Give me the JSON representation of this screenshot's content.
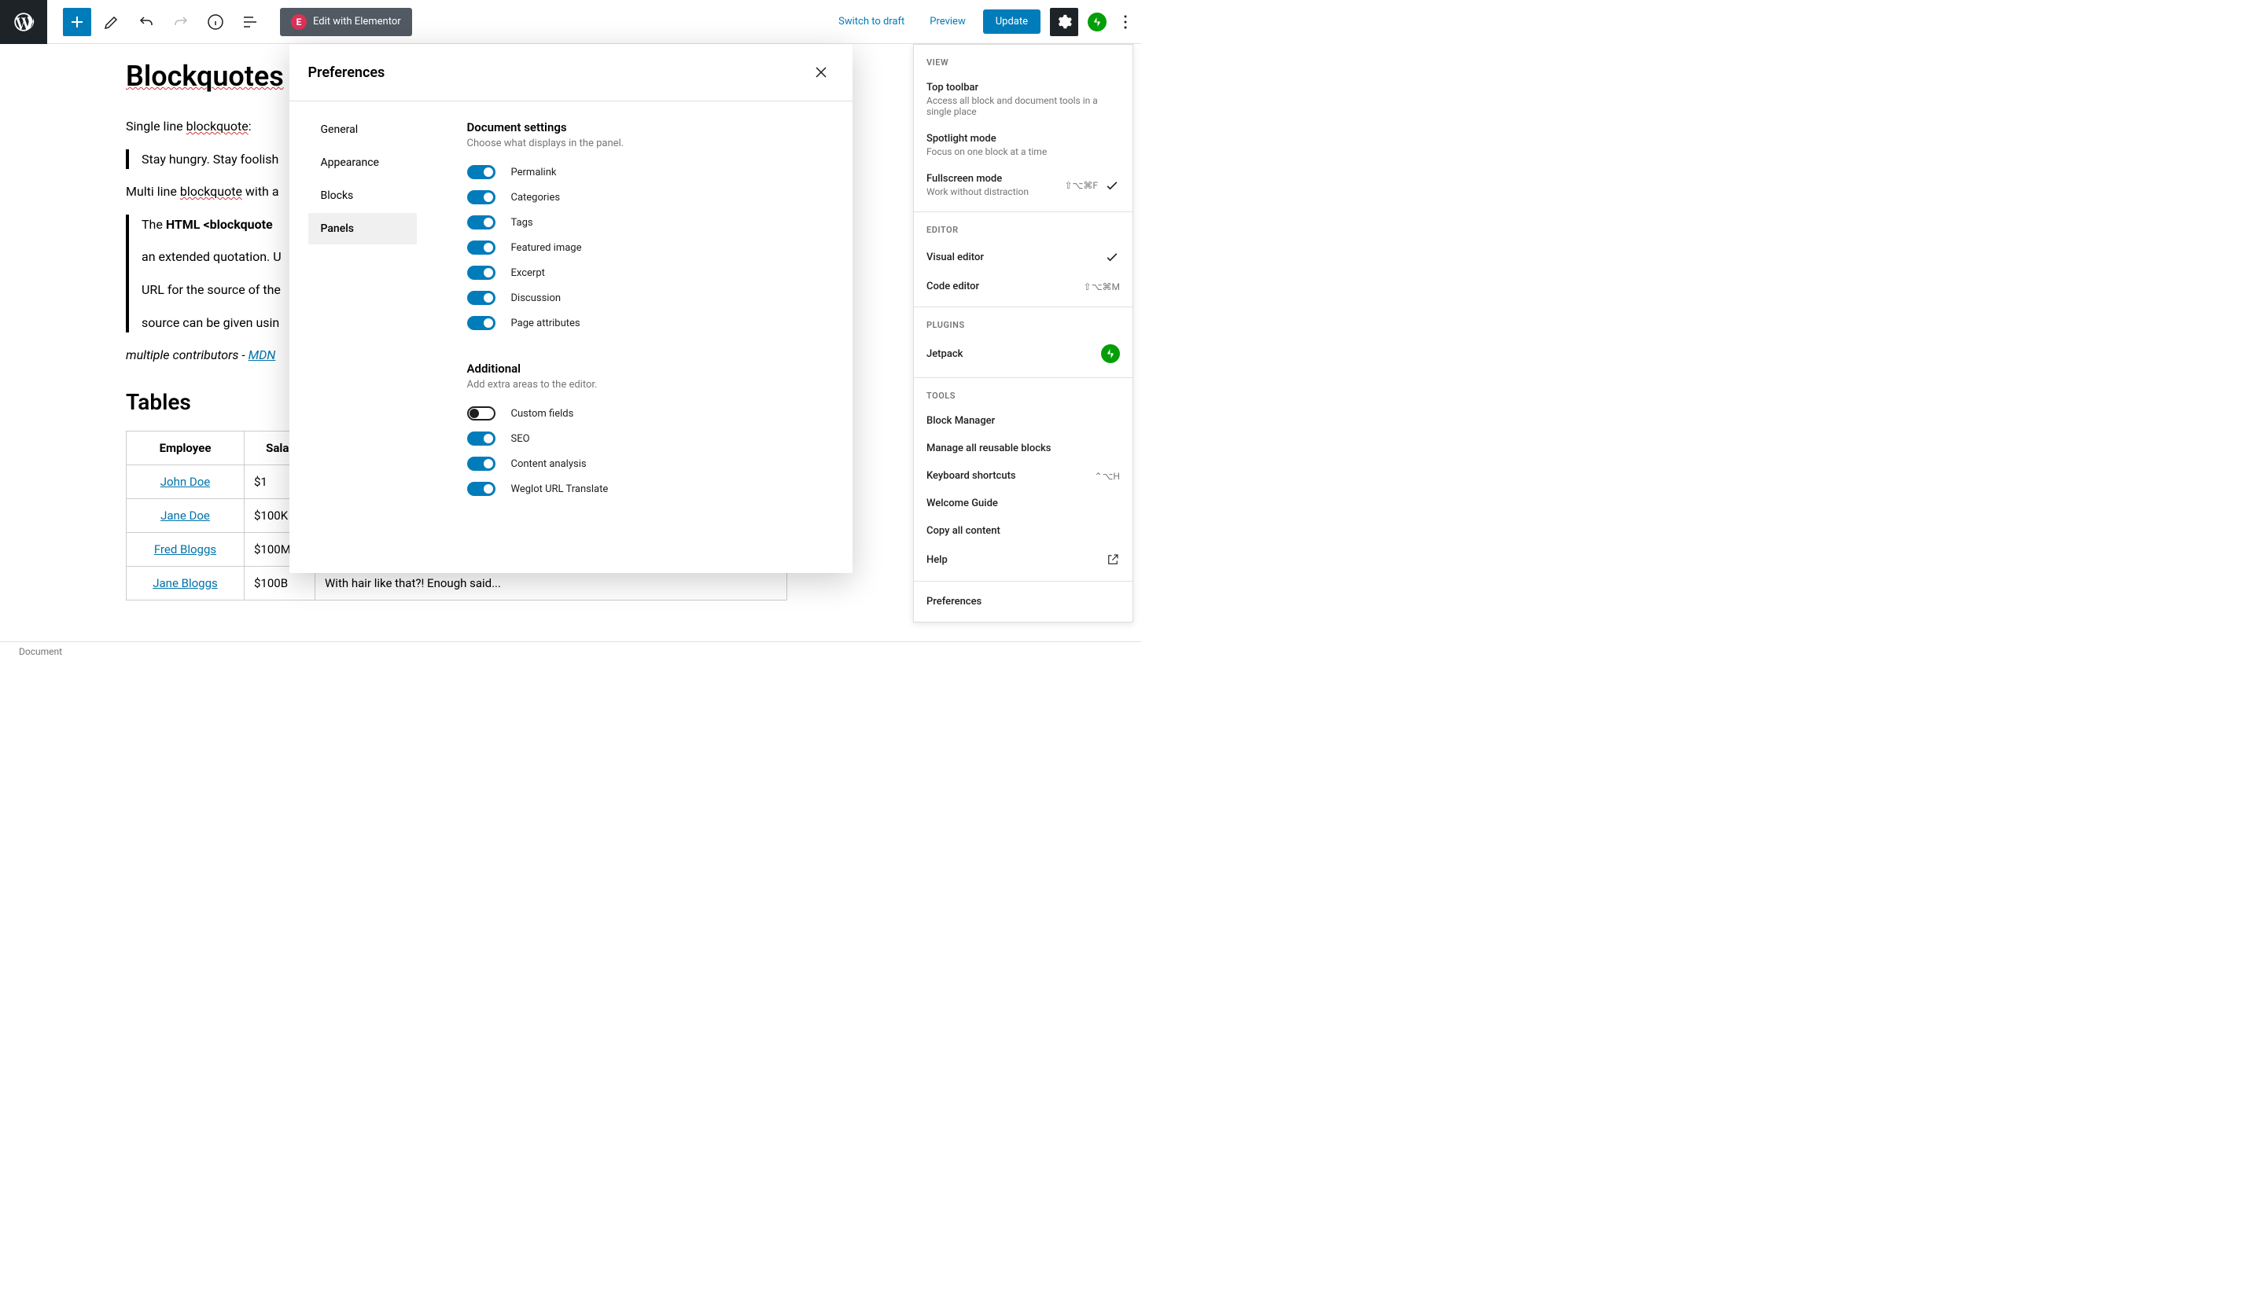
{
  "toolbar": {
    "elementor_label": "Edit with Elementor",
    "switch_draft": "Switch to draft",
    "preview": "Preview",
    "update": "Update"
  },
  "editor": {
    "h1": "Blockquotes",
    "p1_a": "Single line ",
    "p1_b": "blockquote",
    "p1_c": ":",
    "bq1": "Stay hungry. Stay foolish",
    "p2_a": "Multi line ",
    "p2_b": "blockquote",
    "p2_c": " with a",
    "bq2_a": "The ",
    "bq2_b": "HTML ",
    "bq2_c": "<blockquote",
    "bq2_line2": "an extended quotation. U",
    "bq2_line3": "URL for the source of the",
    "bq2_line4": "source can be given usin",
    "cite_a": "multiple contributors",
    "cite_b": " - ",
    "cite_c": "MDN",
    "h2": "Tables",
    "table": {
      "headers": [
        "Employee",
        "Salar"
      ],
      "col3_partial": "",
      "rows": [
        {
          "name": "John Doe",
          "salary": "$1"
        },
        {
          "name": "Jane Doe",
          "salary": "$100K"
        },
        {
          "name": "Fred Bloggs",
          "salary": "$100M"
        },
        {
          "name": "Jane Bloggs",
          "salary": "$100B",
          "note": "With hair like that?! Enough said..."
        }
      ]
    }
  },
  "modal": {
    "title": "Preferences",
    "tabs": [
      "General",
      "Appearance",
      "Blocks",
      "Panels"
    ],
    "active_tab": 3,
    "section1": {
      "title": "Document settings",
      "sub": "Choose what displays in the panel.",
      "toggles": [
        {
          "label": "Permalink",
          "on": true
        },
        {
          "label": "Categories",
          "on": true
        },
        {
          "label": "Tags",
          "on": true
        },
        {
          "label": "Featured image",
          "on": true
        },
        {
          "label": "Excerpt",
          "on": true
        },
        {
          "label": "Discussion",
          "on": true
        },
        {
          "label": "Page attributes",
          "on": true
        }
      ]
    },
    "section2": {
      "title": "Additional",
      "sub": "Add extra areas to the editor.",
      "toggles": [
        {
          "label": "Custom fields",
          "on": false
        },
        {
          "label": "SEO",
          "on": true
        },
        {
          "label": "Content analysis",
          "on": true
        },
        {
          "label": "Weglot URL Translate",
          "on": true
        }
      ]
    }
  },
  "dropdown": {
    "view_header": "VIEW",
    "view": [
      {
        "title": "Top toolbar",
        "desc": "Access all block and document tools in a single place"
      },
      {
        "title": "Spotlight mode",
        "desc": "Focus on one block at a time"
      },
      {
        "title": "Fullscreen mode",
        "desc": "Work without distraction",
        "shortcut": "⇧⌥⌘F",
        "checked": true
      }
    ],
    "editor_header": "EDITOR",
    "editor": [
      {
        "title": "Visual editor",
        "checked": true
      },
      {
        "title": "Code editor",
        "shortcut": "⇧⌥⌘M"
      }
    ],
    "plugins_header": "PLUGINS",
    "plugins": [
      {
        "title": "Jetpack",
        "jetpack": true
      }
    ],
    "tools_header": "TOOLS",
    "tools": [
      {
        "title": "Block Manager"
      },
      {
        "title": "Manage all reusable blocks"
      },
      {
        "title": "Keyboard shortcuts",
        "shortcut": "⌃⌥H"
      },
      {
        "title": "Welcome Guide"
      },
      {
        "title": "Copy all content"
      },
      {
        "title": "Help",
        "external": true
      }
    ],
    "prefs": "Preferences"
  },
  "bottom": {
    "label": "Document"
  }
}
